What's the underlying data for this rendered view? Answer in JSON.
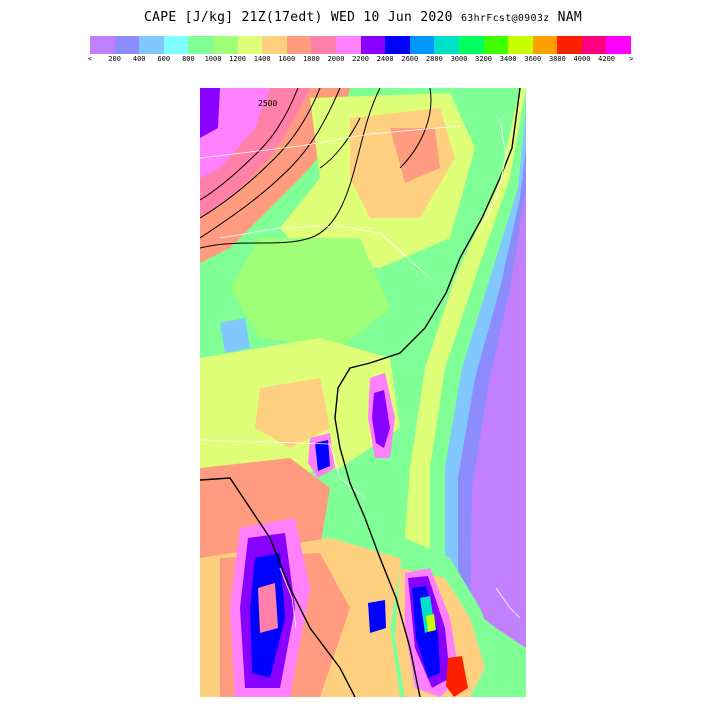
{
  "title": {
    "main": "CAPE [J/kg] 21Z(17edt) WED 10 Jun 2020",
    "forecast": "63hrFcst@0903z",
    "model": "NAM"
  },
  "legend": {
    "colors": [
      "#c080ff",
      "#8c8cff",
      "#80c8ff",
      "#80ffff",
      "#80ff96",
      "#a0ff78",
      "#e0ff78",
      "#ffd080",
      "#ff9c80",
      "#ff80a8",
      "#ff80ff",
      "#8800ff",
      "#0000ff",
      "#0096ff",
      "#00e0c8",
      "#00ff60",
      "#40ff00",
      "#c8ff00",
      "#ffa000",
      "#ff2000",
      "#ff0080",
      "#ff00ff"
    ],
    "less_marker": "<",
    "more_marker": ">",
    "ticks": [
      "200",
      "400",
      "600",
      "800",
      "1000",
      "1200",
      "1400",
      "1600",
      "1800",
      "2000",
      "2200",
      "2400",
      "2600",
      "2800",
      "3000",
      "3200",
      "3400",
      "3600",
      "3800",
      "4000",
      "4200"
    ]
  },
  "map": {
    "contour_label": "2500",
    "colors": {
      "ocean": "#c080ff",
      "coast_band": "#8c8cff",
      "shelf": "#80c8ff",
      "low": "#a0ff78",
      "green": "#80ff96",
      "yellow": "#e0ff78",
      "orange": "#ffd080",
      "salmon": "#ff9c80",
      "pink": "#ff80a8",
      "magenta": "#ff80ff",
      "purple": "#8800ff",
      "blue": "#0000ff",
      "red": "#ff2000"
    }
  }
}
